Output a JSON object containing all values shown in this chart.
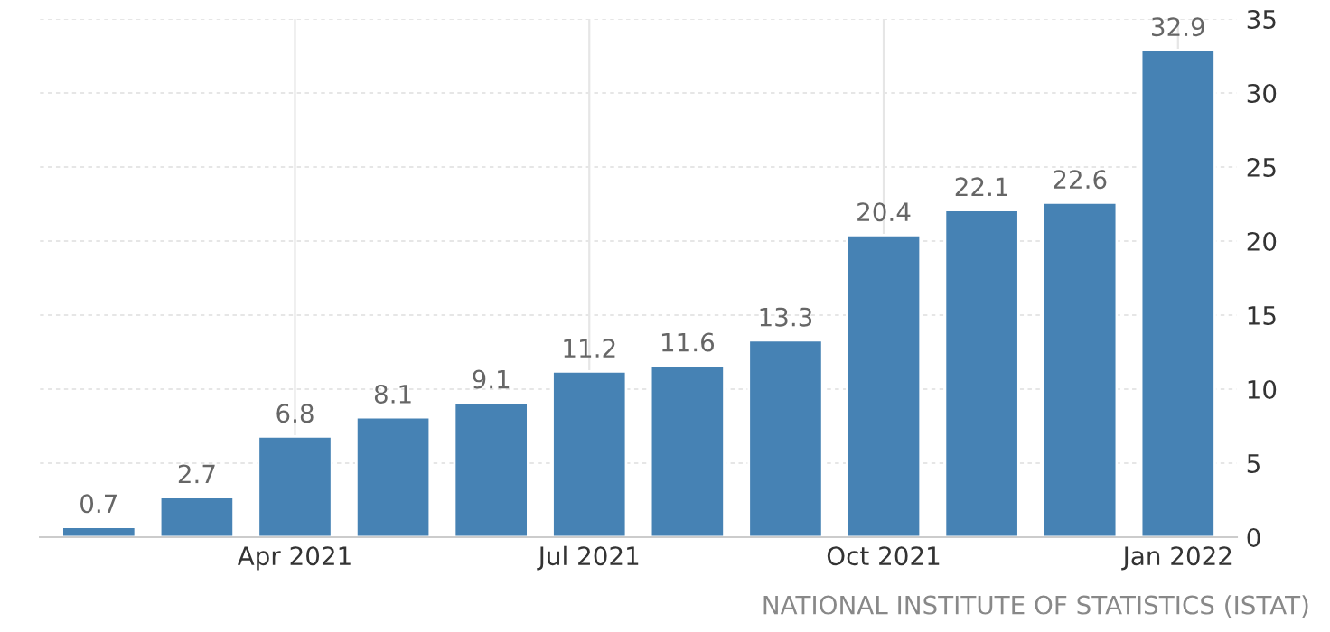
{
  "chart_data": {
    "type": "bar",
    "categories": [
      null,
      null,
      "Apr 2021",
      null,
      null,
      "Jul 2021",
      null,
      null,
      "Oct 2021",
      null,
      null,
      "Jan 2022"
    ],
    "values": [
      0.7,
      2.7,
      6.8,
      8.1,
      9.1,
      11.2,
      11.6,
      13.3,
      20.4,
      22.1,
      22.6,
      32.9
    ],
    "color": "#4682b4",
    "ylim": [
      0,
      35
    ],
    "yticks": [
      0,
      5,
      10,
      15,
      20,
      25,
      30,
      35
    ],
    "grid": true,
    "data_labels": true,
    "annotations": [
      "NATIONAL INSTITUTE OF STATISTICS (ISTAT)"
    ]
  }
}
